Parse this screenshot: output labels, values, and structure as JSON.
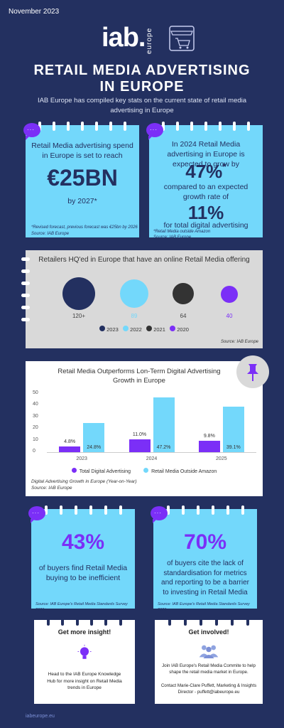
{
  "header": {
    "date": "November 2023",
    "logo_main": "iab.",
    "logo_sub": "europe",
    "title_line1": "RETAIL MEDIA ADVERTISING",
    "title_line2": "IN EUROPE",
    "intro": "IAB Europe has compiled key stats on the current state of retail media advertising in Europe"
  },
  "card1": {
    "text": "Retail Media advertising spend in Europe is set to reach",
    "big": "€25BN",
    "year": "by 2027*",
    "note1": "*Revised forecast, previous forecast was €25bn by 2026",
    "note2": "Source: IAB Europe"
  },
  "card2": {
    "text": "In 2024 Retail Media advertising in Europe is expected to grow by",
    "big1": "47%",
    "star": "*",
    "mid": "compared to an expected growth rate of",
    "big2": "11%",
    "tail": "for total digital advertising",
    "note1": "*Retail Media outside Amazon",
    "note2": "Source: IAB Europe"
  },
  "retailers": {
    "title": "Retailers HQ'ed in Europe that have an online Retail Media offering",
    "values": [
      "120+",
      "89",
      "64",
      "40"
    ],
    "legend": [
      "2023",
      "2022",
      "2021",
      "2020"
    ],
    "colors": [
      "#233060",
      "#73d8fb",
      "#333333",
      "#7b2ff7"
    ],
    "source": "Source: IAB Europe"
  },
  "chart_data": {
    "type": "bar",
    "title": "Retail Media Outperforms Lon-Term Digital Advertising Growth in Europe",
    "categories": [
      "2023",
      "2024",
      "2025"
    ],
    "series": [
      {
        "name": "Total Digital Advertising",
        "values": [
          4.8,
          11.0,
          9.8
        ],
        "labels": [
          "4.8%",
          "11.0%",
          "9.8%"
        ],
        "color": "#7b2ff7"
      },
      {
        "name": "Retail Media Outside Amazon",
        "values": [
          24.8,
          47.2,
          39.1
        ],
        "labels": [
          "24.8%",
          "47.2%",
          "39.1%"
        ],
        "color": "#73d8fb"
      }
    ],
    "yticks": [
      "50",
      "40",
      "30",
      "20",
      "10",
      "0"
    ],
    "ylim": [
      0,
      50
    ],
    "caption": "Digital Advertising Growth in Europe (Year-on-Year)",
    "source": "Source: IAB Europe"
  },
  "card3": {
    "big": "43%",
    "text": "of buyers find Retail Media buying to be inefficient",
    "note": "Source: IAB Europe's Retail Media Standards Survey 2023"
  },
  "card4": {
    "big": "70%",
    "text": "of buyers cite the lack of standardisation for metrics and reporting to be a barrier to investing in Retail Media",
    "note": "Source: IAB Europe's Retail Media Standards Survey 2023"
  },
  "insight": {
    "title": "Get more insight!",
    "text": "Head to the IAB Europe Knowledge Hub for more insight on Retail Media trends in Europe"
  },
  "involved": {
    "title": "Get involved!",
    "text": "Join IAB Europe's Retail Media Commite to help shape the retail media market in Europe.",
    "contact": "Contact Marie-Clare Puffett, Marketing & Insights Director - puffett@iabeurope.eu"
  },
  "footer": {
    "link": "iabeurope.eu"
  }
}
